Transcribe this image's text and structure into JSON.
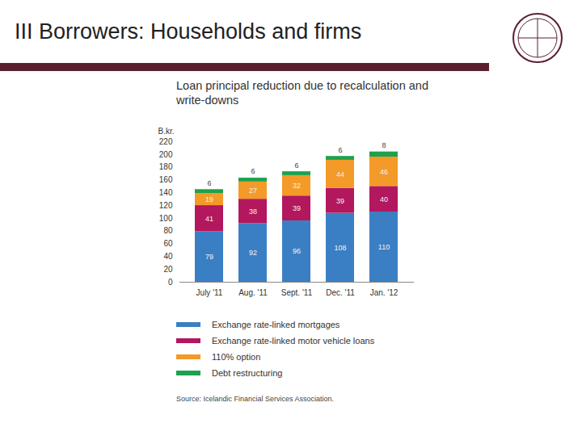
{
  "header": {
    "title": "III Borrowers: Households and firms"
  },
  "chart_data": {
    "type": "bar",
    "title": "Loan principal reduction due to recalculation and write-downs",
    "y_label": "B.kr.",
    "caption": "Source: Icelandic Financial Services Association.",
    "categories": [
      "July '11",
      "Aug. '11",
      "Sept. '11",
      "Dec. '11",
      "Jan. '12"
    ],
    "series": [
      {
        "name": "Exchange rate-linked mortgages",
        "color": "#3a7fc4",
        "values": [
          79,
          92,
          96,
          108,
          110
        ]
      },
      {
        "name": "Exchange rate-linked motor vehicle loans",
        "color": "#b3175e",
        "values": [
          41,
          38,
          39,
          39,
          40
        ]
      },
      {
        "name": "110% option",
        "color": "#f39a28",
        "values": [
          19,
          27,
          32,
          44,
          46
        ]
      },
      {
        "name": "Debt restructuring",
        "color": "#1ea14c",
        "values": [
          6,
          6,
          6,
          6,
          8
        ]
      }
    ],
    "ylim": [
      0,
      220
    ],
    "yticks": [
      0,
      20,
      40,
      60,
      80,
      100,
      120,
      140,
      160,
      180,
      200,
      220
    ],
    "stacked": true,
    "data_labels": true,
    "grid": false
  }
}
